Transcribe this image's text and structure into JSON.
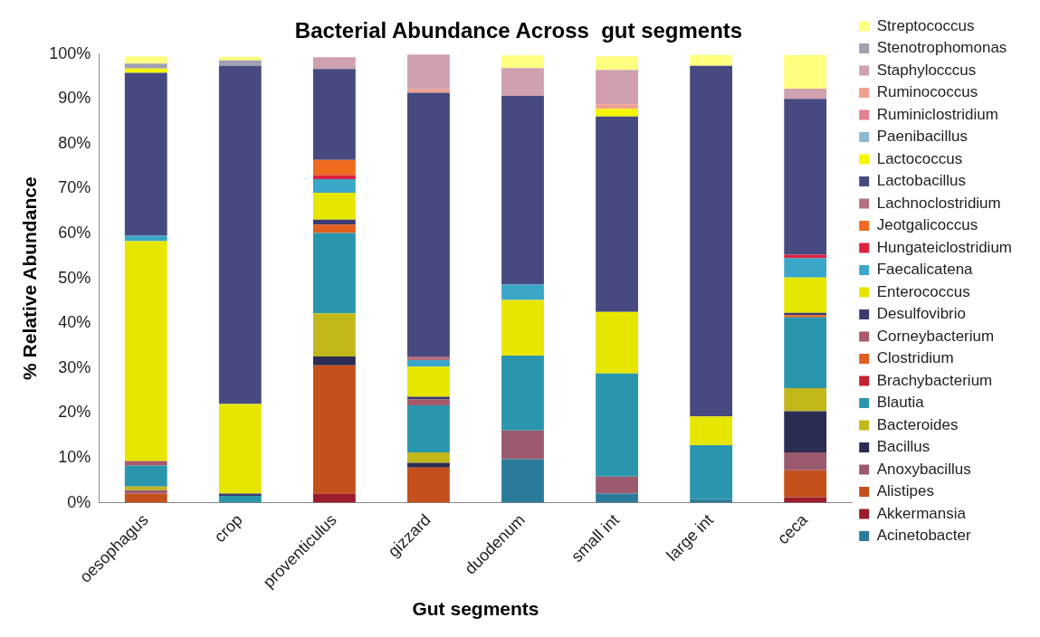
{
  "chart_data": {
    "type": "bar",
    "title": "Bacterial Abundance Across  gut segments",
    "xlabel": "Gut segments",
    "ylabel": "% Relative Abundance",
    "categories": [
      "oesophagus",
      "crop",
      "proventiculus",
      "gizzard",
      "duodenum",
      "small int",
      "large int",
      "ceca"
    ],
    "stacked": true,
    "legend": "right",
    "grid": false,
    "ylim": [
      0,
      100
    ],
    "yticks": [
      {
        "value": 0,
        "label": "0%"
      },
      {
        "value": 10,
        "label": "10%"
      },
      {
        "value": 20,
        "label": "20%"
      },
      {
        "value": 30,
        "label": "30%"
      },
      {
        "value": 40,
        "label": "40%"
      },
      {
        "value": 50,
        "label": "50%"
      },
      {
        "value": 60,
        "label": "60%"
      },
      {
        "value": 70,
        "label": "70%"
      },
      {
        "value": 80,
        "label": "80%"
      },
      {
        "value": 90,
        "label": "90%"
      },
      {
        "value": 100,
        "label": "100%"
      }
    ],
    "series": [
      {
        "name": "Acinetobacter",
        "color": "#2a7b9b",
        "values": [
          0,
          0,
          0,
          0,
          9.7,
          2,
          0.8,
          0
        ]
      },
      {
        "name": "Akkermansia",
        "color": "#9b1c2a",
        "values": [
          0,
          0,
          2,
          0,
          0,
          0,
          0,
          1.2
        ]
      },
      {
        "name": "Alistipes",
        "color": "#c4501b",
        "values": [
          2,
          0,
          28.6,
          7.8,
          0,
          0,
          0,
          6
        ]
      },
      {
        "name": "Anoxybacillus",
        "color": "#9b5a6e",
        "values": [
          0.8,
          0,
          0,
          0,
          6.4,
          3.8,
          0,
          4
        ]
      },
      {
        "name": "Bacillus",
        "color": "#2b2d52",
        "values": [
          0,
          0,
          2,
          1.1,
          0,
          0,
          0,
          9.2
        ]
      },
      {
        "name": "Bacteroides",
        "color": "#c2b81c",
        "values": [
          0.8,
          0,
          9.6,
          2.3,
          0,
          0,
          0,
          5.1
        ]
      },
      {
        "name": "Blautia",
        "color": "#2a96ad",
        "values": [
          4.7,
          1.5,
          17.9,
          10.5,
          16.7,
          23,
          12,
          15.8
        ]
      },
      {
        "name": "Brachybacterium",
        "color": "#c42030",
        "values": [
          0,
          0,
          0,
          0,
          0,
          0,
          0,
          0
        ]
      },
      {
        "name": "Clostridium",
        "color": "#e06020",
        "values": [
          0,
          0,
          1.9,
          0,
          0,
          0,
          0,
          0.5
        ]
      },
      {
        "name": "Corneybacterium",
        "color": "#a85a6a",
        "values": [
          1,
          0,
          0,
          1.3,
          0,
          0,
          0,
          0
        ]
      },
      {
        "name": "Desulfovibrio",
        "color": "#3b3b70",
        "values": [
          0,
          0.5,
          1.1,
          0.6,
          0,
          0,
          0,
          0.5
        ]
      },
      {
        "name": "Enterococcus",
        "color": "#e6e600",
        "values": [
          49,
          20,
          6,
          6.7,
          12.4,
          13.7,
          6.4,
          7.9
        ]
      },
      {
        "name": "Faecalicatena",
        "color": "#3aa6c8",
        "values": [
          1.2,
          0,
          3,
          1.5,
          3.4,
          0,
          0,
          4.3
        ]
      },
      {
        "name": "Hungateiclostridium",
        "color": "#e02040",
        "values": [
          0,
          0,
          0.9,
          0,
          0,
          0,
          0,
          0.8
        ]
      },
      {
        "name": "Jeotgalicoccus",
        "color": "#f06a20",
        "values": [
          0,
          0,
          3.4,
          0,
          0,
          0,
          0,
          0
        ]
      },
      {
        "name": "Lachnoclostridium",
        "color": "#b07080",
        "values": [
          0,
          0,
          0,
          0.8,
          0,
          0,
          0,
          0
        ]
      },
      {
        "name": "Lactobacillus",
        "color": "#464a80",
        "values": [
          36.3,
          75.4,
          20.3,
          58.8,
          42.1,
          43.6,
          78.2,
          34.7
        ]
      },
      {
        "name": "Lactococcus",
        "color": "#f5f500",
        "values": [
          1,
          0,
          0,
          0,
          0,
          1.7,
          0,
          0
        ]
      },
      {
        "name": "Paenibacillus",
        "color": "#8ab8d0",
        "values": [
          0,
          0,
          0,
          0,
          0,
          0,
          0,
          0
        ]
      },
      {
        "name": "Ruminiclostridium",
        "color": "#e08090",
        "values": [
          0,
          0,
          0,
          0,
          0,
          0,
          0,
          0
        ]
      },
      {
        "name": "Ruminococcus",
        "color": "#f0a090",
        "values": [
          0,
          0,
          0,
          0.8,
          0,
          1,
          0,
          0
        ]
      },
      {
        "name": "Staphylocccus",
        "color": "#d0a0b0",
        "values": [
          0,
          0,
          2.6,
          7.7,
          6.2,
          7.7,
          0,
          2.3
        ]
      },
      {
        "name": "Stenotrophomonas",
        "color": "#a0a0b0",
        "values": [
          1.1,
          1.2,
          0,
          0,
          0,
          0,
          0,
          0
        ]
      },
      {
        "name": "Streptococcus",
        "color": "#ffff80",
        "values": [
          1.6,
          0.8,
          0,
          0,
          2.8,
          3,
          2.4,
          7.5
        ]
      }
    ]
  }
}
